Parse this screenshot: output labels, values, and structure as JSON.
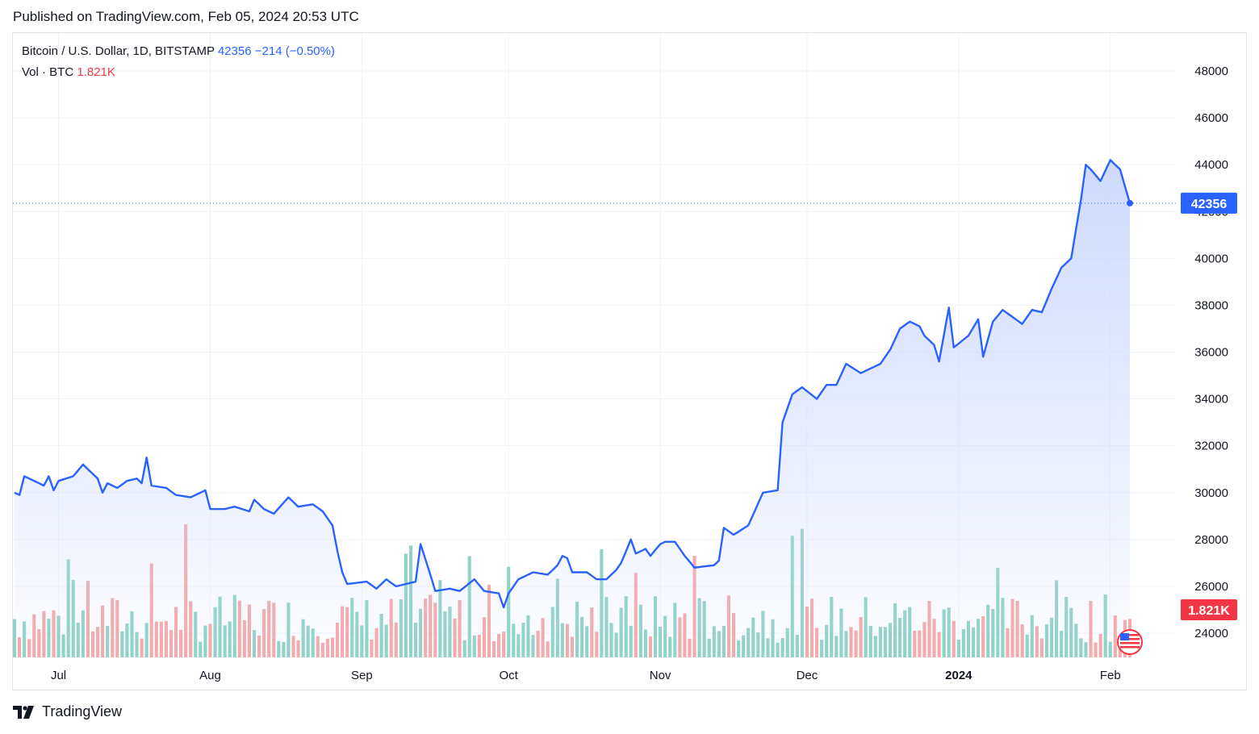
{
  "header": {
    "published": "Published on TradingView.com, Feb 05, 2024 20:53 UTC"
  },
  "legend": {
    "symbol": "Bitcoin / U.S. Dollar, 1D, BITSTAMP",
    "last": "42356",
    "change": "−214 (−0.50%)",
    "vol_label": "Vol · BTC",
    "vol_value": "1.821K"
  },
  "footer": {
    "brand": "TradingView"
  },
  "colors": {
    "line": "#2962ff",
    "area_top": "#c9d6fb",
    "volume_up": "#8fd3c6",
    "volume_down": "#f5a9a9",
    "price_label_bg": "#2962ff",
    "volume_label_bg": "#f23645"
  },
  "chart_data": {
    "type": "line",
    "xlabel": "",
    "ylabel": "",
    "ylim": [
      23000,
      48500
    ],
    "y_ticks": [
      24000,
      26000,
      28000,
      30000,
      32000,
      34000,
      36000,
      38000,
      40000,
      42000,
      44000,
      46000,
      48000
    ],
    "x_ticks": [
      {
        "label": "Jul",
        "date": "2023-07-01",
        "bold": false
      },
      {
        "label": "Aug",
        "date": "2023-08-01",
        "bold": false
      },
      {
        "label": "Sep",
        "date": "2023-09-01",
        "bold": false
      },
      {
        "label": "Oct",
        "date": "2023-10-01",
        "bold": false
      },
      {
        "label": "Nov",
        "date": "2023-11-01",
        "bold": false
      },
      {
        "label": "Dec",
        "date": "2023-12-01",
        "bold": false
      },
      {
        "label": "2024",
        "date": "2024-01-01",
        "bold": true
      },
      {
        "label": "Feb",
        "date": "2024-02-01",
        "bold": false
      }
    ],
    "start_date": "2023-06-22",
    "end_date": "2024-02-05",
    "last_price": 42356,
    "last_volume_label": "1.821K",
    "price_anchors": [
      [
        "2023-06-22",
        30000
      ],
      [
        "2023-06-23",
        29900
      ],
      [
        "2023-06-24",
        30700
      ],
      [
        "2023-06-26",
        30500
      ],
      [
        "2023-06-28",
        30300
      ],
      [
        "2023-06-29",
        30700
      ],
      [
        "2023-06-30",
        30100
      ],
      [
        "2023-07-01",
        30500
      ],
      [
        "2023-07-04",
        30700
      ],
      [
        "2023-07-06",
        31200
      ],
      [
        "2023-07-09",
        30600
      ],
      [
        "2023-07-10",
        30000
      ],
      [
        "2023-07-11",
        30400
      ],
      [
        "2023-07-13",
        30200
      ],
      [
        "2023-07-15",
        30500
      ],
      [
        "2023-07-17",
        30600
      ],
      [
        "2023-07-18",
        30400
      ],
      [
        "2023-07-19",
        31500
      ],
      [
        "2023-07-20",
        30300
      ],
      [
        "2023-07-23",
        30200
      ],
      [
        "2023-07-25",
        29900
      ],
      [
        "2023-07-28",
        29800
      ],
      [
        "2023-07-31",
        30100
      ],
      [
        "2023-08-01",
        29300
      ],
      [
        "2023-08-04",
        29300
      ],
      [
        "2023-08-06",
        29400
      ],
      [
        "2023-08-09",
        29200
      ],
      [
        "2023-08-10",
        29700
      ],
      [
        "2023-08-12",
        29300
      ],
      [
        "2023-08-14",
        29100
      ],
      [
        "2023-08-17",
        29800
      ],
      [
        "2023-08-19",
        29400
      ],
      [
        "2023-08-22",
        29500
      ],
      [
        "2023-08-24",
        29200
      ],
      [
        "2023-08-26",
        28600
      ],
      [
        "2023-08-27",
        27500
      ],
      [
        "2023-08-28",
        26600
      ],
      [
        "2023-08-29",
        26100
      ],
      [
        "2023-09-02",
        26200
      ],
      [
        "2023-09-04",
        25900
      ],
      [
        "2023-09-06",
        26300
      ],
      [
        "2023-09-08",
        26000
      ],
      [
        "2023-09-12",
        26200
      ],
      [
        "2023-09-13",
        27800
      ],
      [
        "2023-09-15",
        26500
      ],
      [
        "2023-09-16",
        25800
      ],
      [
        "2023-09-19",
        25900
      ],
      [
        "2023-09-21",
        25800
      ],
      [
        "2023-09-24",
        26300
      ],
      [
        "2023-09-26",
        25800
      ],
      [
        "2023-09-29",
        25700
      ],
      [
        "2023-09-30",
        25100
      ],
      [
        "2023-10-01",
        25700
      ],
      [
        "2023-10-03",
        26300
      ],
      [
        "2023-10-06",
        26600
      ],
      [
        "2023-10-09",
        26500
      ],
      [
        "2023-10-11",
        26900
      ],
      [
        "2023-10-12",
        27300
      ],
      [
        "2023-10-13",
        27200
      ],
      [
        "2023-10-14",
        26600
      ],
      [
        "2023-10-17",
        26600
      ],
      [
        "2023-10-19",
        26300
      ],
      [
        "2023-10-21",
        26300
      ],
      [
        "2023-10-23",
        26700
      ],
      [
        "2023-10-24",
        27000
      ],
      [
        "2023-10-26",
        28000
      ],
      [
        "2023-10-27",
        27400
      ],
      [
        "2023-10-29",
        27600
      ],
      [
        "2023-10-30",
        27300
      ],
      [
        "2023-11-01",
        27800
      ],
      [
        "2023-11-02",
        27900
      ],
      [
        "2023-11-04",
        27900
      ],
      [
        "2023-11-06",
        27300
      ],
      [
        "2023-11-08",
        26800
      ],
      [
        "2023-11-12",
        26900
      ],
      [
        "2023-11-13",
        27100
      ],
      [
        "2023-11-14",
        28500
      ],
      [
        "2023-11-16",
        28200
      ],
      [
        "2023-11-19",
        28600
      ],
      [
        "2023-11-22",
        30000
      ],
      [
        "2023-11-25",
        30100
      ],
      [
        "2023-11-26",
        33000
      ],
      [
        "2023-11-28",
        34200
      ],
      [
        "2023-11-30",
        34500
      ],
      [
        "2023-12-03",
        34000
      ],
      [
        "2023-12-05",
        34600
      ],
      [
        "2023-12-07",
        34600
      ],
      [
        "2023-12-09",
        35500
      ],
      [
        "2023-12-12",
        35100
      ],
      [
        "2023-12-14",
        35300
      ],
      [
        "2023-12-16",
        35500
      ],
      [
        "2023-12-18",
        36100
      ],
      [
        "2023-12-20",
        37000
      ],
      [
        "2023-12-22",
        37300
      ],
      [
        "2023-12-24",
        37100
      ],
      [
        "2023-12-25",
        36700
      ],
      [
        "2023-12-27",
        36300
      ],
      [
        "2023-12-28",
        35600
      ],
      [
        "2023-12-30",
        37900
      ],
      [
        "2023-12-31",
        36200
      ],
      [
        "2024-01-03",
        36700
      ],
      [
        "2024-01-05",
        37400
      ],
      [
        "2024-01-06",
        35800
      ],
      [
        "2024-01-08",
        37300
      ],
      [
        "2024-01-10",
        37800
      ],
      [
        "2024-01-12",
        37500
      ],
      [
        "2024-01-14",
        37200
      ],
      [
        "2024-01-16",
        37800
      ],
      [
        "2024-01-18",
        37700
      ],
      [
        "2024-01-20",
        38700
      ],
      [
        "2024-01-22",
        39600
      ],
      [
        "2024-01-24",
        40000
      ],
      [
        "2024-01-26",
        42500
      ],
      [
        "2024-01-27",
        44000
      ],
      [
        "2024-01-28",
        43800
      ],
      [
        "2024-01-30",
        43300
      ],
      [
        "2024-02-01",
        44200
      ],
      [
        "2024-02-03",
        43800
      ],
      [
        "2024-02-05",
        42356
      ]
    ],
    "volumes": []
  }
}
